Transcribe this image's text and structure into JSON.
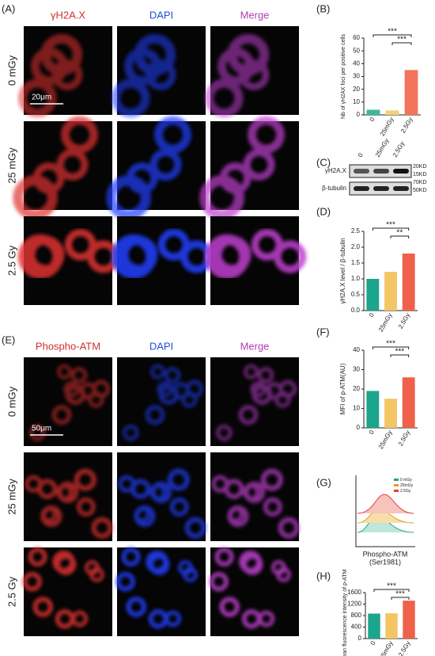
{
  "panels": [
    {
      "label": "(A)",
      "columns": [
        "γH2A.X",
        "DAPI",
        "Merge"
      ],
      "rows": [
        "0 mGy",
        "25 mGy",
        "2.5 Gy"
      ],
      "scale": "20μm"
    },
    {
      "label": "(E)",
      "columns": [
        "Phospho-ATM",
        "DAPI",
        "Merge"
      ],
      "rows": [
        "0 mGy",
        "25 mGy",
        "2.5 Gy"
      ],
      "scale": "50μm"
    }
  ],
  "blot": {
    "label": "(C)",
    "lanes": [
      "0",
      "25mGy",
      "2.5Gy"
    ],
    "rows": [
      "γH2A.X",
      "β-tubulin"
    ],
    "markers": [
      "20KD",
      "15KD",
      "70KD",
      "50KD"
    ]
  },
  "flow": {
    "label": "(G)",
    "legend": [
      "0 mGy",
      "25mGy",
      "2.5Gy"
    ],
    "xlabel": [
      "Phospho-ATM",
      "(Ser1981)"
    ]
  },
  "chart_data": [
    {
      "type": "bar",
      "label": "(B)",
      "ylabel": "Nb of γH2AX foci per positive cells",
      "categories": [
        "0",
        "25mGy",
        "2.5Gy"
      ],
      "values": [
        4,
        3.5,
        35
      ],
      "colors": [
        "#3bb89b",
        "#f5cf7a",
        "#f3735a"
      ],
      "ylim": [
        0,
        60
      ],
      "yticks": [
        0,
        10,
        20,
        30,
        40,
        50,
        60
      ],
      "annotations": [
        "***",
        "***"
      ]
    },
    {
      "type": "bar",
      "label": "(D)",
      "ylabel": "γH2A.X level / β-tubulin",
      "categories": [
        "0",
        "25mGy",
        "2.5Gy"
      ],
      "values": [
        1.0,
        1.22,
        1.8
      ],
      "colors": [
        "#1aa58c",
        "#f3c565",
        "#f0614b"
      ],
      "ylim": [
        0,
        2.5
      ],
      "yticks": [
        {
          "value": 0,
          "label": "0.0"
        },
        {
          "value": 0.5,
          "label": "0.5"
        },
        {
          "value": 1,
          "label": "1.0"
        },
        {
          "value": 1.5,
          "label": "1.5"
        },
        {
          "value": 2,
          "label": "2.0"
        },
        {
          "value": 2.5,
          "label": "2.5"
        }
      ],
      "annotations": [
        "***",
        "**"
      ]
    },
    {
      "type": "bar",
      "label": "(F)",
      "ylabel": "MFI of p-ATM(AU)",
      "categories": [
        "0",
        "25mGy",
        "2.5Gy"
      ],
      "values": [
        19,
        15,
        26
      ],
      "colors": [
        "#1aa58c",
        "#f3c565",
        "#f0614b"
      ],
      "ylim": [
        0,
        40
      ],
      "yticks": [
        0,
        10,
        20,
        30,
        40
      ],
      "annotations": [
        "***",
        "***"
      ]
    },
    {
      "type": "bar",
      "label": "(H)",
      "ylabel": "Mean fluorescence intensity of p-ATM",
      "categories": [
        "0",
        "25mGy",
        "2.5Gy"
      ],
      "values": [
        870,
        880,
        1320
      ],
      "colors": [
        "#1aa58c",
        "#f3c565",
        "#f0614b"
      ],
      "ylim": [
        0,
        1600
      ],
      "yticks": [
        0,
        400,
        800,
        1200,
        1600
      ],
      "annotations": [
        "***",
        "***"
      ]
    }
  ]
}
